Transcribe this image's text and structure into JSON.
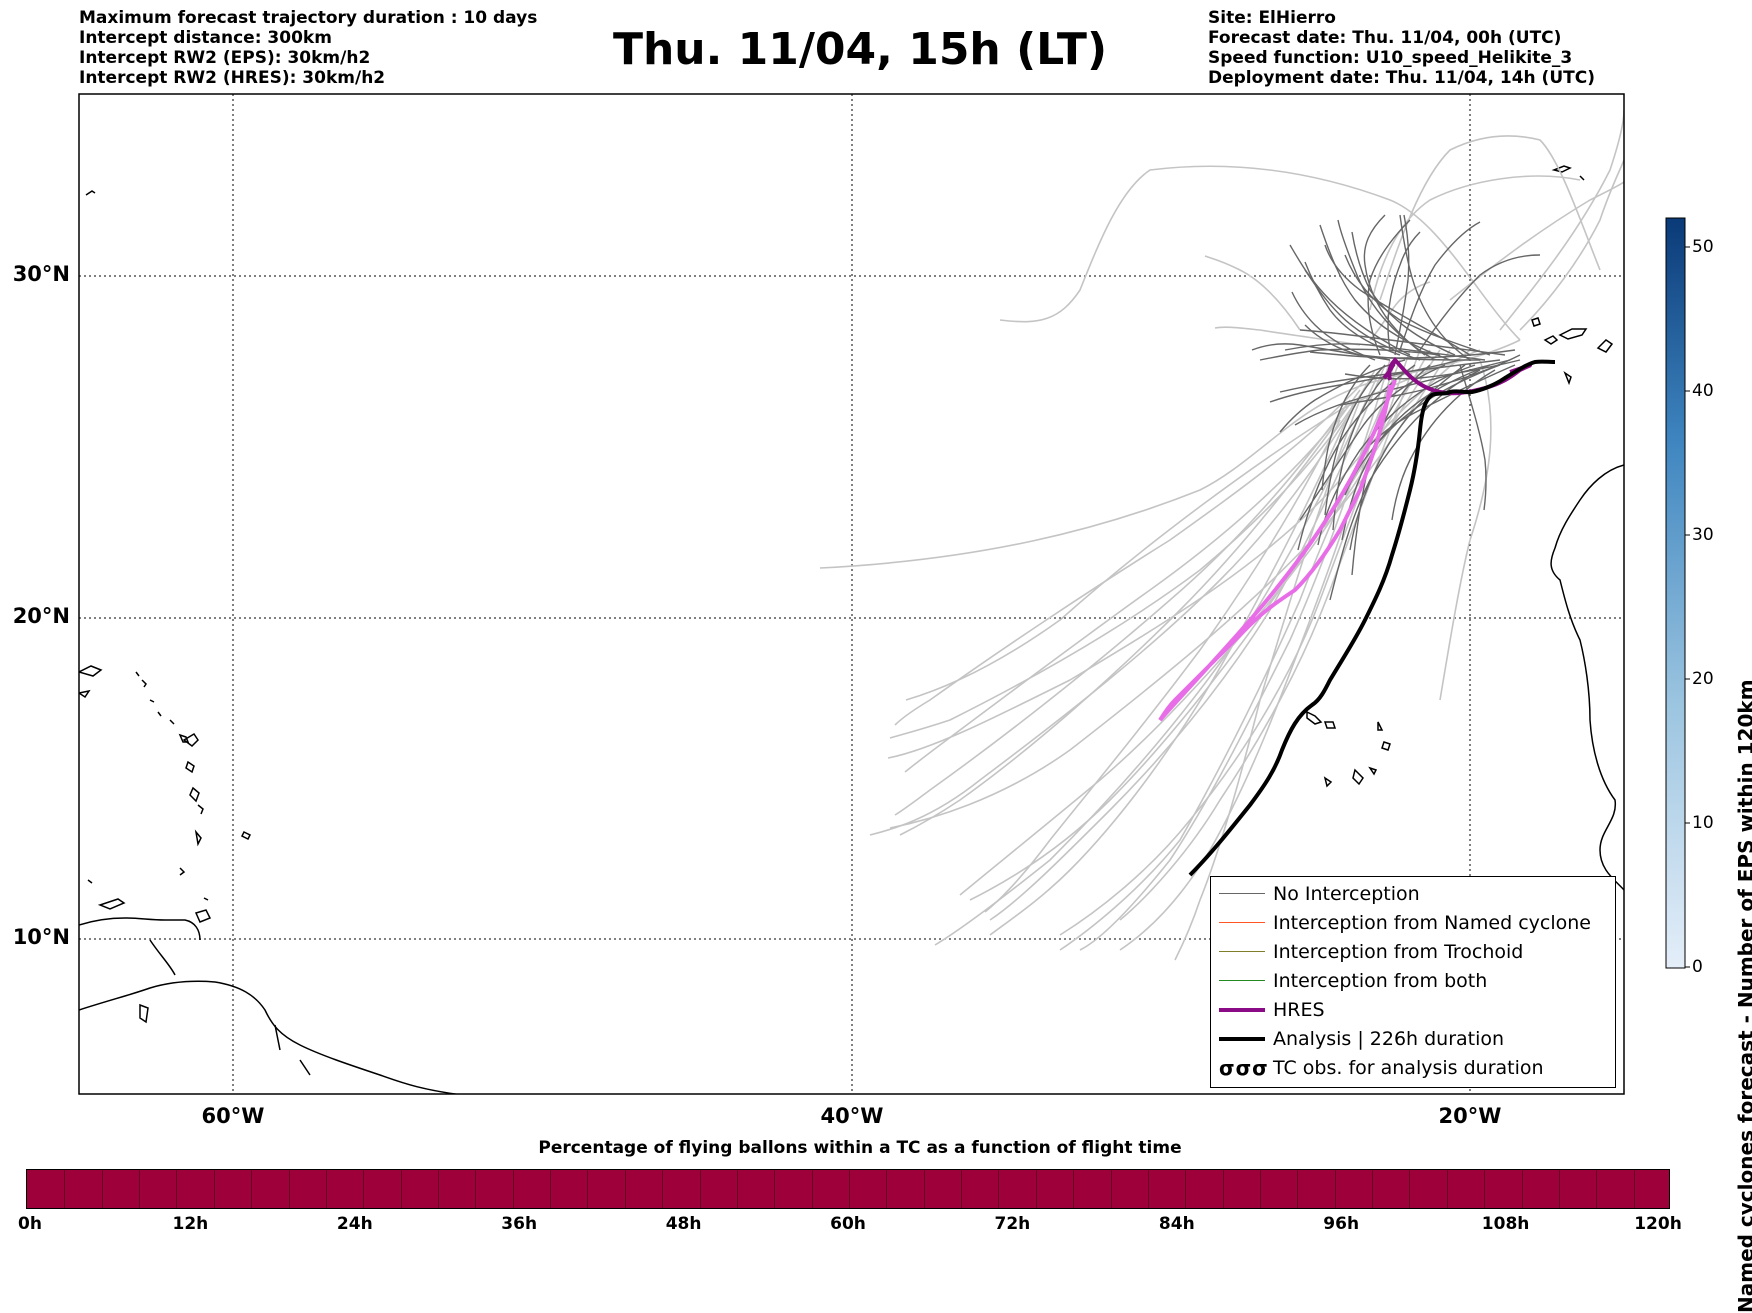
{
  "header": {
    "left_lines": [
      "Maximum forecast trajectory duration : 10 days",
      "Intercept distance: 300km",
      "Intercept RW2 (EPS):  30km/h2",
      "Intercept RW2 (HRES): 30km/h2"
    ],
    "title": "Thu. 11/04, 15h (LT)",
    "right_lines": [
      "Site: ElHierro",
      "Forecast date: Thu. 11/04, 00h (UTC)",
      "Speed function: U10_speed_Helikite_3",
      "Deployment date: Thu. 11/04, 14h (UTC)"
    ]
  },
  "map": {
    "lat_labels": [
      "30°N",
      "20°N",
      "10°N"
    ],
    "lon_labels": [
      "60°W",
      "40°W",
      "20°W"
    ],
    "colors": {
      "no_interception": "#555555",
      "eps_faint": "#c4c4c4",
      "named_cyclone": "#ff5522",
      "trochoid": "#7f7f2a",
      "both": "#228b22",
      "hres": "#8b0a85",
      "hres_light": "#e86ee8",
      "analysis": "#000000"
    }
  },
  "legend": {
    "items": [
      {
        "label": "No Interception",
        "style": "thin-gray"
      },
      {
        "label": "Interception from Named cyclone",
        "style": "thin-orange"
      },
      {
        "label": "Interception from Trochoid",
        "style": "thin-olive"
      },
      {
        "label": "Interception from both",
        "style": "thin-green"
      },
      {
        "label": "HRES",
        "style": "thick-purple"
      },
      {
        "label": "Analysis | 226h duration",
        "style": "thick-black"
      },
      {
        "label": "TC obs. for analysis duration",
        "style": "tc-symbols"
      }
    ],
    "tc_symbol_text": "σσσ"
  },
  "colorbar": {
    "title": "Named cyclones forecast - Number of EPS within 120km",
    "ticks": [
      "0",
      "10",
      "20",
      "30",
      "40",
      "50"
    ],
    "min": 0,
    "max": 52
  },
  "timebar": {
    "title": "Percentage of flying ballons within a TC as a function of flight time",
    "ticks": [
      "0h",
      "12h",
      "24h",
      "36h",
      "48h",
      "60h",
      "72h",
      "84h",
      "96h",
      "108h",
      "120h"
    ],
    "fill_color": "#9e003a"
  }
}
